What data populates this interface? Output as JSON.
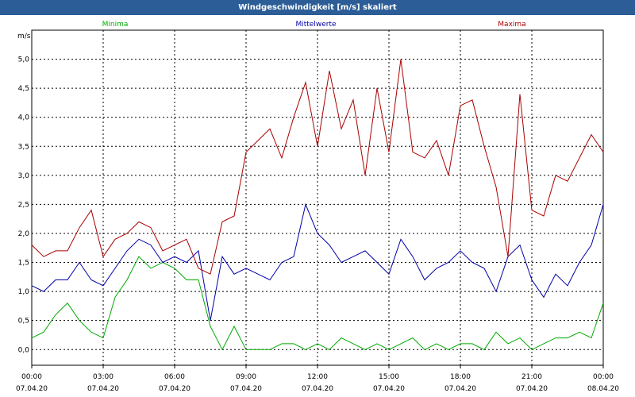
{
  "window": {
    "title": "Windgeschwindigkeit [m/s] skaliert"
  },
  "colors": {
    "title_bg": "#2c5d97",
    "min": "#00aa00",
    "mean": "#0000aa",
    "max": "#aa0000"
  },
  "chart_data": {
    "type": "line",
    "title": "Windgeschwindigkeit [m/s] skaliert",
    "ylabel": "m/s",
    "ylim": [
      -0.27,
      5.5
    ],
    "xlim": [
      0,
      24
    ],
    "grid": true,
    "legend": [
      "Minima",
      "Mittelwerte",
      "Maxima"
    ],
    "legend_placement": "top",
    "y_ticks": [
      "0,0",
      "0,5",
      "1,0",
      "1,5",
      "2,0",
      "2,5",
      "3,0",
      "3,5",
      "4,0",
      "4,5",
      "5,0"
    ],
    "y_tick_values": [
      0,
      0.5,
      1.0,
      1.5,
      2.0,
      2.5,
      3.0,
      3.5,
      4.0,
      4.5,
      5.0
    ],
    "x_ticks": [
      {
        "time": "00:00",
        "date": "07.04.20"
      },
      {
        "time": "03:00",
        "date": "07.04.20"
      },
      {
        "time": "06:00",
        "date": "07.04.20"
      },
      {
        "time": "09:00",
        "date": "07.04.20"
      },
      {
        "time": "12:00",
        "date": "07.04.20"
      },
      {
        "time": "15:00",
        "date": "07.04.20"
      },
      {
        "time": "18:00",
        "date": "07.04.20"
      },
      {
        "time": "21:00",
        "date": "07.04.20"
      },
      {
        "time": "00:00",
        "date": "08.04.20"
      }
    ],
    "x_tick_hours": [
      0,
      3,
      6,
      9,
      12,
      15,
      18,
      21,
      24
    ],
    "x_hours": [
      0,
      0.5,
      1,
      1.5,
      2,
      2.5,
      3,
      3.5,
      4,
      4.5,
      5,
      5.5,
      6,
      6.5,
      7,
      7.5,
      8,
      8.5,
      9,
      9.5,
      10,
      10.5,
      11,
      11.5,
      12,
      12.5,
      13,
      13.5,
      14,
      14.5,
      15,
      15.5,
      16,
      16.5,
      17,
      17.5,
      18,
      18.5,
      19,
      19.5,
      20,
      20.5,
      21,
      21.5,
      22,
      22.5,
      23,
      23.5,
      24
    ],
    "series": [
      {
        "name": "Minima",
        "values": [
          0.2,
          0.3,
          0.6,
          0.8,
          0.5,
          0.3,
          0.2,
          0.9,
          1.2,
          1.6,
          1.4,
          1.5,
          1.4,
          1.2,
          1.2,
          0.4,
          0.0,
          0.4,
          0.0,
          0.0,
          0.0,
          0.1,
          0.1,
          0.0,
          0.1,
          0.0,
          0.2,
          0.1,
          0.0,
          0.1,
          0.0,
          0.1,
          0.2,
          0.0,
          0.1,
          0.0,
          0.1,
          0.1,
          0.0,
          0.3,
          0.1,
          0.2,
          0.0,
          0.1,
          0.2,
          0.2,
          0.3,
          0.2,
          0.8
        ]
      },
      {
        "name": "Mittelwerte",
        "values": [
          1.1,
          1.0,
          1.2,
          1.2,
          1.5,
          1.2,
          1.1,
          1.4,
          1.7,
          1.9,
          1.8,
          1.5,
          1.6,
          1.5,
          1.7,
          0.5,
          1.6,
          1.3,
          1.4,
          1.3,
          1.2,
          1.5,
          1.6,
          2.5,
          2.0,
          1.8,
          1.5,
          1.6,
          1.7,
          1.5,
          1.3,
          1.9,
          1.6,
          1.2,
          1.4,
          1.5,
          1.7,
          1.5,
          1.4,
          1.0,
          1.6,
          1.8,
          1.2,
          0.9,
          1.3,
          1.1,
          1.5,
          1.8,
          2.5
        ]
      },
      {
        "name": "Maxima",
        "values": [
          1.8,
          1.6,
          1.7,
          1.7,
          2.1,
          2.4,
          1.6,
          1.9,
          2.0,
          2.2,
          2.1,
          1.7,
          1.8,
          1.9,
          1.4,
          1.3,
          2.2,
          2.3,
          3.4,
          3.6,
          3.8,
          3.3,
          4.0,
          4.6,
          3.5,
          4.8,
          3.8,
          4.3,
          3.0,
          4.5,
          3.4,
          5.0,
          3.4,
          3.3,
          3.6,
          3.0,
          4.2,
          4.3,
          3.5,
          2.8,
          1.6,
          4.4,
          2.4,
          2.3,
          3.0,
          2.9,
          3.3,
          3.7,
          3.4
        ]
      }
    ]
  }
}
